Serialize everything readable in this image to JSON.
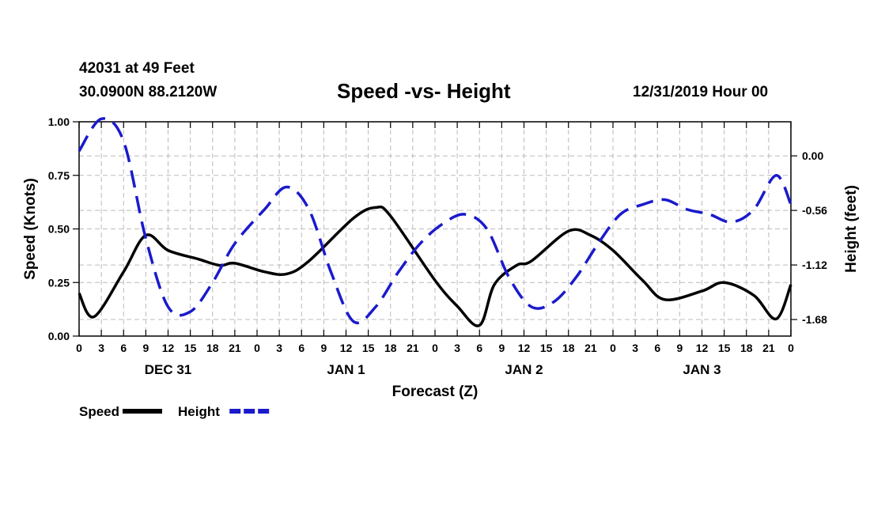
{
  "header": {
    "station": "42031 at 49 Feet",
    "location": "30.0900N 88.2120W",
    "datetime": "12/31/2019 Hour 00"
  },
  "colors": {
    "speed": "#000000",
    "height": "#1a1acc",
    "grid": "#bbbbbb"
  },
  "chart_data": {
    "type": "line",
    "title": "Speed -vs- Height",
    "xlabel": "Forecast (Z)",
    "ylabel": "Speed (Knots)",
    "y2label": "Height (feet)",
    "xlim": [
      0,
      96
    ],
    "ylim": [
      0,
      1
    ],
    "y2lim": [
      -1.85,
      0.35
    ],
    "x_tick_labels": [
      "0",
      "3",
      "6",
      "9",
      "12",
      "15",
      "18",
      "21",
      "0",
      "3",
      "6",
      "9",
      "12",
      "15",
      "18",
      "21",
      "0",
      "3",
      "6",
      "9",
      "12",
      "15",
      "18",
      "21",
      "0",
      "3",
      "6",
      "9",
      "12",
      "15",
      "18",
      "21",
      "0"
    ],
    "day_labels": [
      {
        "label": "DEC 31",
        "x": 12
      },
      {
        "label": "JAN 1",
        "x": 36
      },
      {
        "label": "JAN 2",
        "x": 60
      },
      {
        "label": "JAN 3",
        "x": 84
      }
    ],
    "y_ticks": [
      0,
      0.25,
      0.5,
      0.75,
      1.0
    ],
    "y_tick_labels": [
      "0.00",
      "0.25",
      "0.50",
      "0.75",
      "1.00"
    ],
    "y2_ticks": [
      0.0,
      -0.56,
      -1.12,
      -1.68
    ],
    "y2_tick_labels": [
      "0.00",
      "-0.56",
      "-1.12",
      "-1.68"
    ],
    "series": [
      {
        "name": "Speed",
        "axis": "left",
        "style": "solid",
        "x": [
          0,
          2,
          6,
          9,
          12,
          16,
          19,
          21,
          25,
          28,
          31,
          37,
          40,
          42,
          48,
          51,
          54,
          56,
          59,
          61,
          66,
          69,
          72,
          76,
          79,
          84,
          87,
          91,
          94,
          96
        ],
        "y": [
          0.2,
          0.09,
          0.3,
          0.47,
          0.4,
          0.36,
          0.33,
          0.34,
          0.3,
          0.29,
          0.35,
          0.55,
          0.6,
          0.56,
          0.26,
          0.14,
          0.05,
          0.24,
          0.33,
          0.35,
          0.49,
          0.47,
          0.4,
          0.26,
          0.17,
          0.21,
          0.25,
          0.19,
          0.08,
          0.24
        ]
      },
      {
        "name": "Height",
        "axis": "right",
        "style": "dashed",
        "x": [
          0,
          3,
          6,
          9,
          12,
          15,
          18,
          21,
          25,
          28,
          31,
          34,
          37,
          40,
          43,
          46,
          49,
          52,
          55,
          58,
          61,
          64,
          67,
          70,
          73,
          76,
          79,
          82,
          85,
          88,
          91,
          94,
          96
        ],
        "y": [
          0.05,
          0.38,
          0.15,
          -0.85,
          -1.55,
          -1.6,
          -1.3,
          -0.9,
          -0.55,
          -0.32,
          -0.55,
          -1.2,
          -1.7,
          -1.55,
          -1.2,
          -0.9,
          -0.7,
          -0.6,
          -0.75,
          -1.25,
          -1.55,
          -1.5,
          -1.25,
          -0.9,
          -0.6,
          -0.5,
          -0.45,
          -0.55,
          -0.6,
          -0.68,
          -0.55,
          -0.2,
          -0.5
        ]
      }
    ],
    "legend": [
      {
        "label": "Speed",
        "series": "Speed"
      },
      {
        "label": "Height",
        "series": "Height"
      }
    ],
    "legend_placement": "bottom-left"
  }
}
